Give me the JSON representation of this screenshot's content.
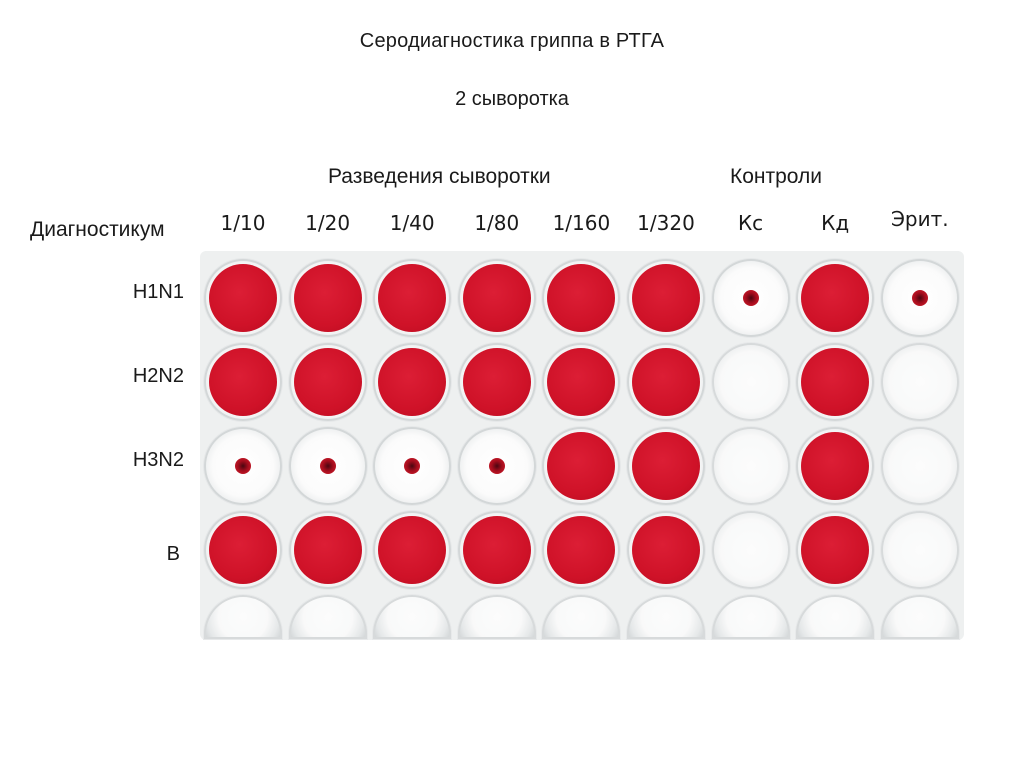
{
  "title": "Серодиагностика гриппа в РТГА",
  "subtitle": "2 сыворотка",
  "groups": {
    "dilutions": "Разведения сыворотки",
    "controls": "Контроли"
  },
  "diagnosticum_label": "Диагностикум",
  "columns": [
    "1/10",
    "1/20",
    "1/40",
    "1/80",
    "1/160",
    "1/320",
    "Кс",
    "Кд",
    "Эрит."
  ],
  "rows": [
    {
      "label": "H1N1",
      "wells": [
        "agglutination",
        "agglutination",
        "agglutination",
        "agglutination",
        "agglutination",
        "agglutination",
        "sediment",
        "agglutination",
        "sediment"
      ]
    },
    {
      "label": "H2N2",
      "wells": [
        "agglutination",
        "agglutination",
        "agglutination",
        "agglutination",
        "agglutination",
        "agglutination",
        "empty",
        "agglutination",
        "empty"
      ]
    },
    {
      "label": "H3N2",
      "wells": [
        "sediment",
        "sediment",
        "sediment",
        "sediment",
        "agglutination",
        "agglutination",
        "empty",
        "agglutination",
        "empty"
      ]
    },
    {
      "label": "B",
      "wells": [
        "agglutination",
        "agglutination",
        "agglutination",
        "agglutination",
        "agglutination",
        "agglutination",
        "empty",
        "agglutination",
        "empty"
      ]
    },
    {
      "label": "",
      "wells": [
        "empty",
        "empty",
        "empty",
        "empty",
        "empty",
        "empty",
        "empty",
        "empty",
        "empty"
      ]
    }
  ],
  "colors": {
    "erythrocyte_red": "#cf1228",
    "plate": "#eef0f0"
  }
}
